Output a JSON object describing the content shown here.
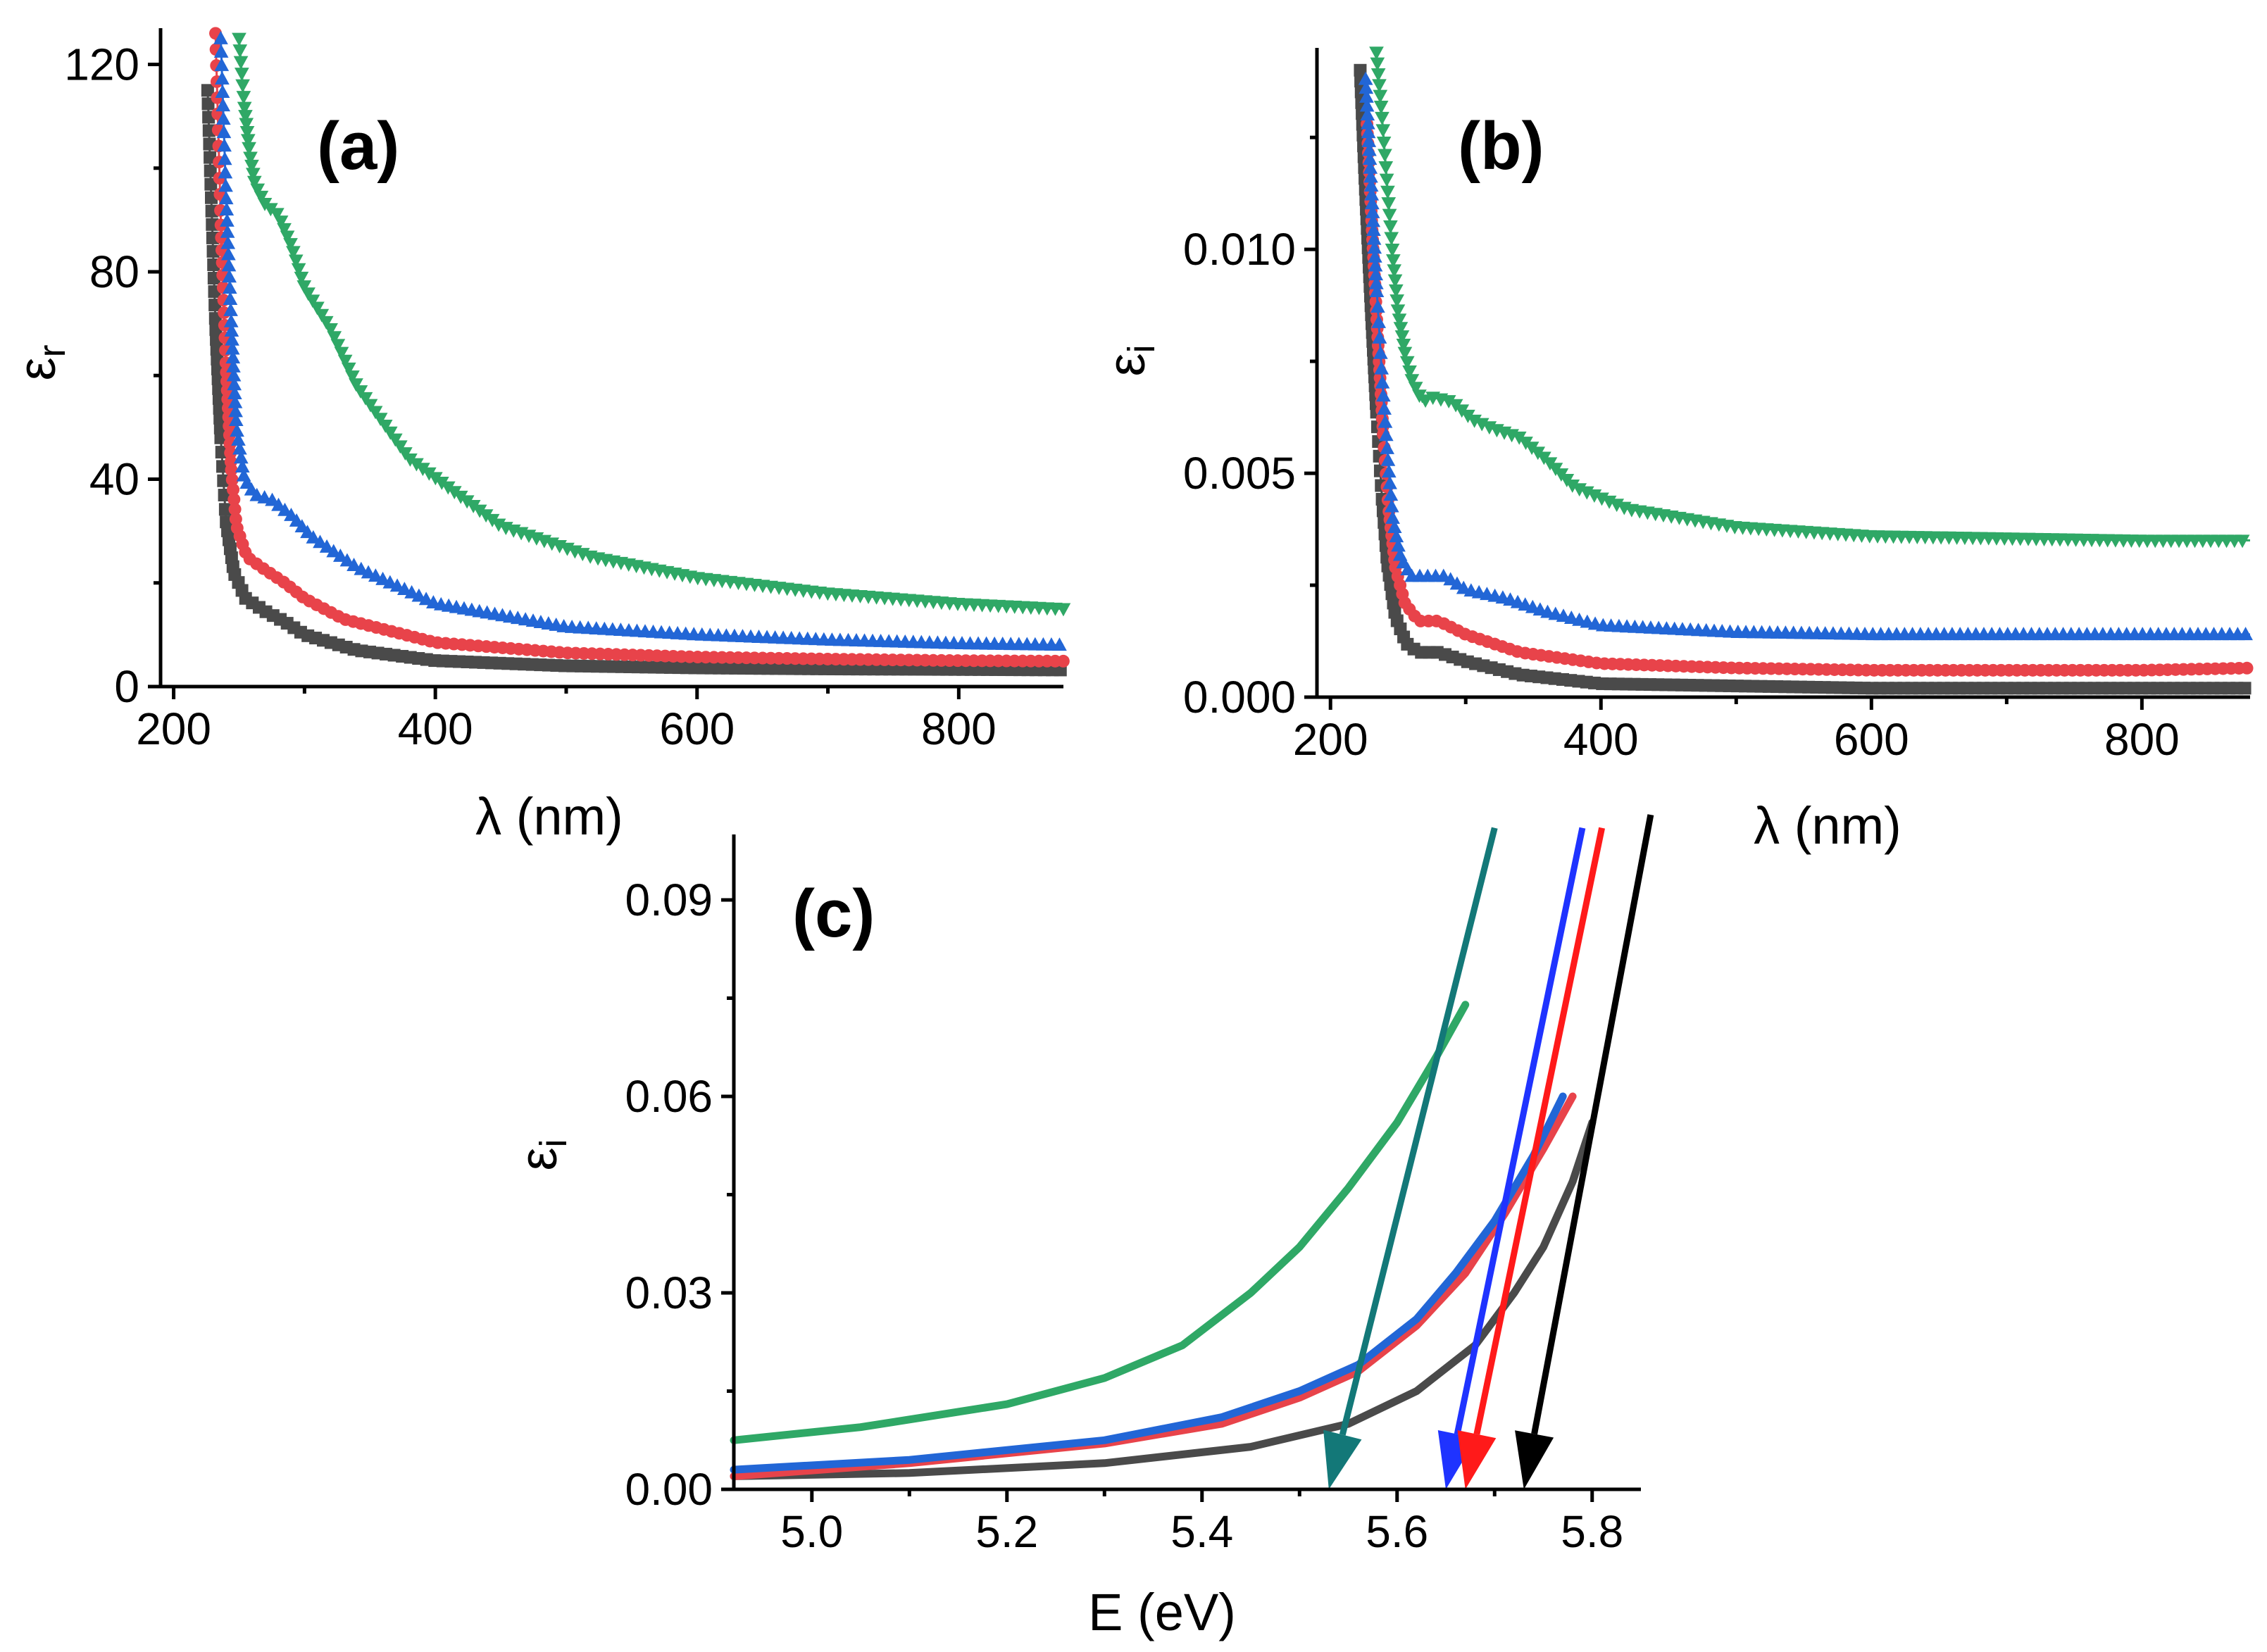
{
  "series_colors": {
    "black": "#4a4a4a",
    "red": "#e8434a",
    "blue": "#2266d6",
    "green": "#2fa866",
    "teal": "#137878"
  },
  "arrow_colors": {
    "teal": "#137878",
    "blue": "#1f33ff",
    "red": "#ff1a1a",
    "black": "#000000"
  },
  "chart_data": [
    {
      "id": "a",
      "type": "scatter",
      "panel_label": "(a)",
      "xlabel": "λ (nm)",
      "ylabel": "ε",
      "ylabel_sub": "r",
      "xlim": [
        190,
        880
      ],
      "ylim": [
        0,
        127
      ],
      "xticks": [
        200,
        400,
        600,
        800
      ],
      "yticks": [
        0,
        40,
        80,
        120
      ],
      "series": [
        {
          "color": "black",
          "marker": "square",
          "x": [
            226,
            232,
            236,
            240,
            246,
            255,
            270,
            285,
            300,
            340,
            400,
            500,
            600,
            700,
            800,
            880
          ],
          "y": [
            115,
            70,
            48,
            32,
            22,
            17,
            14.5,
            12.5,
            10,
            7,
            5,
            4,
            3.6,
            3.4,
            3.3,
            3.2
          ]
        },
        {
          "color": "red",
          "marker": "circle",
          "x": [
            232,
            236,
            240,
            244,
            248,
            256,
            270,
            285,
            300,
            330,
            400,
            500,
            600,
            700,
            800,
            880
          ],
          "y": [
            126,
            90,
            62,
            42,
            31,
            25,
            22.5,
            20,
            17,
            13,
            8.5,
            6.5,
            5.7,
            5.3,
            5.0,
            4.9
          ]
        },
        {
          "color": "blue",
          "marker": "triangle",
          "x": [
            236,
            240,
            244,
            248,
            254,
            262,
            275,
            290,
            305,
            340,
            400,
            500,
            600,
            700,
            800,
            880
          ],
          "y": [
            125,
            95,
            70,
            50,
            40,
            37,
            36,
            33,
            29,
            23,
            16,
            11.5,
            10,
            9,
            8.3,
            8
          ]
        },
        {
          "color": "green",
          "marker": "triangle-down",
          "x": [
            250,
            254,
            258,
            262,
            270,
            280,
            290,
            300,
            320,
            340,
            380,
            450,
            520,
            600,
            700,
            800,
            880
          ],
          "y": [
            125,
            112,
            103,
            97,
            93,
            91,
            85,
            77,
            69,
            58,
            44,
            31,
            25,
            21,
            18,
            16,
            15
          ]
        }
      ]
    },
    {
      "id": "b",
      "type": "scatter",
      "panel_label": "(b)",
      "xlabel": "λ (nm)",
      "ylabel": "ε",
      "ylabel_sub": "i",
      "xlim": [
        190,
        880
      ],
      "ylim": [
        0,
        0.0145
      ],
      "xticks": [
        200,
        400,
        600,
        800
      ],
      "yticks": [
        0.0,
        0.005,
        0.01
      ],
      "ytick_labels": [
        "0.000",
        "0.005",
        "0.010"
      ],
      "series": [
        {
          "color": "black",
          "marker": "square",
          "x": [
            222,
            226,
            230,
            234,
            238,
            242,
            248,
            256,
            265,
            280,
            300,
            340,
            400,
            500,
            600,
            700,
            800,
            880
          ],
          "y": [
            0.014,
            0.0112,
            0.0087,
            0.0064,
            0.0045,
            0.003,
            0.0018,
            0.0012,
            0.001,
            0.001,
            0.0008,
            0.0005,
            0.0003,
            0.00025,
            0.0002,
            0.0002,
            0.0002,
            0.0002
          ]
        },
        {
          "color": "red",
          "marker": "circle",
          "x": [
            227,
            231,
            235,
            239,
            243,
            248,
            255,
            265,
            280,
            300,
            340,
            400,
            500,
            600,
            700,
            800,
            880
          ],
          "y": [
            0.0128,
            0.0103,
            0.008,
            0.0059,
            0.0042,
            0.0029,
            0.0021,
            0.0017,
            0.0017,
            0.0014,
            0.001,
            0.00075,
            0.00065,
            0.0006,
            0.0006,
            0.0006,
            0.00065
          ]
        },
        {
          "color": "blue",
          "marker": "triangle",
          "x": [
            226,
            230,
            234,
            238,
            242,
            246,
            252,
            260,
            270,
            285,
            300,
            330,
            360,
            400,
            500,
            600,
            700,
            800,
            880
          ],
          "y": [
            0.0138,
            0.0115,
            0.0092,
            0.0072,
            0.0055,
            0.004,
            0.0031,
            0.0027,
            0.0027,
            0.0027,
            0.0024,
            0.0022,
            0.0019,
            0.0016,
            0.00145,
            0.0014,
            0.0014,
            0.0014,
            0.0014
          ]
        },
        {
          "color": "green",
          "marker": "triangle-down",
          "x": [
            234,
            238,
            242,
            246,
            250,
            255,
            260,
            268,
            275,
            290,
            305,
            320,
            340,
            360,
            380,
            420,
            500,
            600,
            700,
            800,
            880
          ],
          "y": [
            0.0144,
            0.013,
            0.0114,
            0.0099,
            0.0086,
            0.0077,
            0.0071,
            0.0066,
            0.0067,
            0.0066,
            0.0062,
            0.006,
            0.0058,
            0.0053,
            0.0047,
            0.0042,
            0.0038,
            0.0036,
            0.00355,
            0.0035,
            0.0035
          ]
        }
      ]
    },
    {
      "id": "c",
      "type": "line",
      "panel_label": "(c)",
      "xlabel": "E (eV)",
      "ylabel": "ε",
      "ylabel_sub": "i",
      "xlim": [
        4.92,
        5.85
      ],
      "ylim": [
        0,
        0.1
      ],
      "xticks": [
        5.0,
        5.2,
        5.4,
        5.6,
        5.8
      ],
      "xtick_labels": [
        "5.0",
        "5.2",
        "5.4",
        "5.6",
        "5.8"
      ],
      "yticks": [
        0.0,
        0.03,
        0.06,
        0.09
      ],
      "ytick_labels": [
        "0.00",
        "0.03",
        "0.06",
        "0.09"
      ],
      "series": [
        {
          "color": "black",
          "x": [
            4.92,
            5.1,
            5.3,
            5.45,
            5.55,
            5.62,
            5.68,
            5.72,
            5.75,
            5.78,
            5.8
          ],
          "y": [
            0.002,
            0.0025,
            0.004,
            0.0065,
            0.01,
            0.015,
            0.022,
            0.03,
            0.037,
            0.047,
            0.056
          ]
        },
        {
          "color": "red",
          "x": [
            4.92,
            5.1,
            5.3,
            5.42,
            5.5,
            5.56,
            5.62,
            5.67,
            5.71,
            5.75,
            5.78
          ],
          "y": [
            0.002,
            0.004,
            0.007,
            0.01,
            0.014,
            0.018,
            0.025,
            0.033,
            0.042,
            0.052,
            0.06
          ]
        },
        {
          "color": "blue",
          "x": [
            4.92,
            5.1,
            5.3,
            5.42,
            5.5,
            5.56,
            5.62,
            5.66,
            5.7,
            5.74,
            5.77
          ],
          "y": [
            0.003,
            0.0045,
            0.0075,
            0.011,
            0.015,
            0.019,
            0.026,
            0.033,
            0.041,
            0.051,
            0.06
          ]
        },
        {
          "color": "green",
          "x": [
            4.92,
            5.05,
            5.2,
            5.3,
            5.38,
            5.45,
            5.5,
            5.55,
            5.6,
            5.64,
            5.67
          ],
          "y": [
            0.0075,
            0.0095,
            0.013,
            0.017,
            0.022,
            0.03,
            0.037,
            0.046,
            0.056,
            0.066,
            0.074
          ]
        }
      ],
      "arrows": [
        {
          "color": "teal",
          "from": [
            5.7,
            0.101
          ],
          "to": [
            5.53,
            0.0
          ]
        },
        {
          "color": "blue",
          "from": [
            5.79,
            0.101
          ],
          "to": [
            5.65,
            0.0
          ]
        },
        {
          "color": "red",
          "from": [
            5.81,
            0.101
          ],
          "to": [
            5.67,
            0.0
          ]
        },
        {
          "color": "black",
          "from": [
            5.86,
            0.103
          ],
          "to": [
            5.73,
            0.0
          ]
        }
      ]
    }
  ]
}
